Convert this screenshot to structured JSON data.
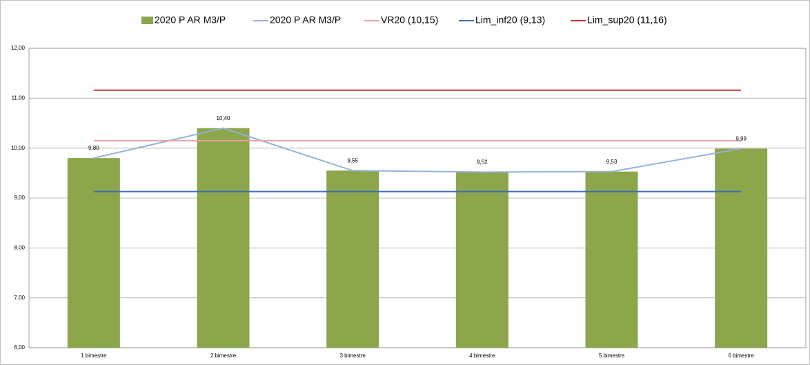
{
  "chart_data": {
    "type": "bar",
    "categories": [
      "1 bimestre",
      "2 bimestre",
      "3 bimestre",
      "4 bimestre",
      "5 bimestre",
      "6 bimestre"
    ],
    "series": [
      {
        "name": "2020 P AR M3/P",
        "type": "bar",
        "color": "#8ba64b",
        "values": [
          9.8,
          10.4,
          9.55,
          9.52,
          9.53,
          9.99
        ],
        "value_labels": [
          "9,80",
          "10,40",
          "9,55",
          "9,52",
          "9,53",
          "9,99"
        ]
      },
      {
        "name": "2020 P AR M3/P",
        "type": "line",
        "color": "#95b3d7",
        "values": [
          9.8,
          10.4,
          9.55,
          9.52,
          9.53,
          9.99
        ]
      },
      {
        "name": "VR20 (10,15)",
        "type": "line",
        "color": "#e6a3a3",
        "values": [
          10.15,
          10.15,
          10.15,
          10.15,
          10.15,
          10.15
        ]
      },
      {
        "name": "Lim_inf20 (9,13)",
        "type": "line",
        "color": "#3f6db3",
        "values": [
          9.13,
          9.13,
          9.13,
          9.13,
          9.13,
          9.13
        ]
      },
      {
        "name": "Lim_sup20 (11,16)",
        "type": "line",
        "color": "#c0393b",
        "values": [
          11.16,
          11.16,
          11.16,
          11.16,
          11.16,
          11.16
        ]
      }
    ],
    "ylim": [
      6,
      12
    ],
    "yticks": [
      {
        "value": 6,
        "label": "6,00"
      },
      {
        "value": 7,
        "label": "7,00"
      },
      {
        "value": 8,
        "label": "8,00"
      },
      {
        "value": 9,
        "label": "9,00"
      },
      {
        "value": 10,
        "label": "10,00"
      },
      {
        "value": 11,
        "label": "11,00"
      },
      {
        "value": 12,
        "label": "12,00"
      }
    ],
    "grid": true,
    "legend": "top"
  }
}
